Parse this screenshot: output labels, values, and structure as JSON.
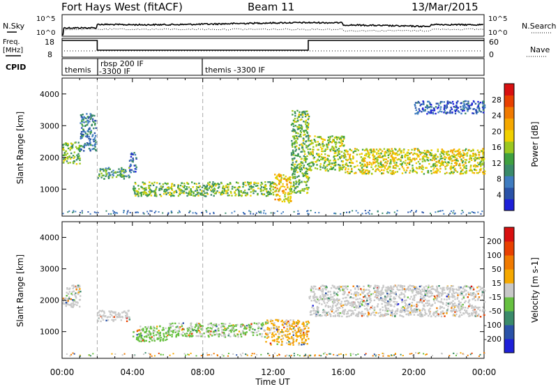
{
  "header": {
    "station": "Fort Hays West (fitACF)",
    "beam": "Beam 11",
    "date": "13/Mar/2015"
  },
  "status_panels": {
    "nsky_label": "N.Sky",
    "nsky_ticks": [
      "10^5",
      "10^0"
    ],
    "nsearch_label": "N.Search",
    "freq_label_line1": "Freq.",
    "freq_label_line2": "[MHz]",
    "freq_ticks": [
      "18",
      "8"
    ],
    "nave_label": "Nave",
    "nave_ticks": [
      "60",
      "0"
    ],
    "cpid_label": "CPID",
    "cpid_segments": [
      {
        "start": 0.0,
        "end": 2.0,
        "label": "themis",
        "label2": ""
      },
      {
        "start": 2.0,
        "end": 8.0,
        "label": "rbsp 200 IF",
        "label2": "-3300 IF"
      },
      {
        "start": 8.0,
        "end": 24.0,
        "label": "themis -3300 IF",
        "label2": ""
      }
    ],
    "freq_high_windows": [
      [
        0.0,
        2.0
      ],
      [
        14.0,
        24.0
      ]
    ]
  },
  "chart_data": [
    {
      "type": "heatmap",
      "title": "",
      "xlabel": "Time UT",
      "ylabel": "Slant Range [km]",
      "xlim": [
        0,
        24
      ],
      "ylim": [
        150,
        4500
      ],
      "x_ticks": [
        "00:00",
        "04:00",
        "08:00",
        "12:00",
        "16:00",
        "20:00",
        "00:00"
      ],
      "y_ticks": [
        1000,
        2000,
        3000,
        4000
      ],
      "colorbar": {
        "label": "Power [dB]",
        "range": [
          0,
          32
        ],
        "ticks": [
          4,
          8,
          12,
          16,
          20,
          24,
          28
        ],
        "colors": [
          "#1e20d8",
          "#2a52a8",
          "#3f7cc0",
          "#3a8a6a",
          "#3fa040",
          "#9bc820",
          "#f0d000",
          "#f5a800",
          "#f07a00",
          "#e84000",
          "#d81010"
        ]
      },
      "scatter_regions": [
        {
          "t0": 0.0,
          "t1": 1.0,
          "r0": 1800,
          "r1": 2500,
          "power": 14
        },
        {
          "t0": 1.0,
          "t1": 1.9,
          "r0": 2200,
          "r1": 3400,
          "power": 8
        },
        {
          "t0": 2.0,
          "t1": 3.8,
          "r0": 1350,
          "r1": 1700,
          "power": 12
        },
        {
          "t0": 3.8,
          "t1": 4.2,
          "r0": 1550,
          "r1": 2200,
          "power": 6
        },
        {
          "t0": 4.0,
          "t1": 12.0,
          "r0": 800,
          "r1": 1250,
          "power": 14
        },
        {
          "t0": 12.0,
          "t1": 13.0,
          "r0": 600,
          "r1": 1500,
          "power": 20
        },
        {
          "t0": 13.0,
          "t1": 14.0,
          "r0": 900,
          "r1": 3500,
          "power": 14
        },
        {
          "t0": 14.0,
          "t1": 16.0,
          "r0": 1600,
          "r1": 2700,
          "power": 16
        },
        {
          "t0": 16.0,
          "t1": 24.0,
          "r0": 1500,
          "r1": 2300,
          "power": 18
        },
        {
          "t0": 20.0,
          "t1": 24.0,
          "r0": 3400,
          "r1": 3800,
          "power": 5
        }
      ],
      "dashed_lines_ut": [
        2.0,
        8.0
      ]
    },
    {
      "type": "heatmap",
      "title": "",
      "xlabel": "Time UT",
      "ylabel": "Slant Range [km]",
      "xlim": [
        0,
        24
      ],
      "ylim": [
        150,
        4500
      ],
      "x_ticks": [
        "00:00",
        "04:00",
        "08:00",
        "12:00",
        "16:00",
        "20:00",
        "00:00"
      ],
      "y_ticks": [
        1000,
        2000,
        3000,
        4000
      ],
      "colorbar": {
        "label": "Velocity [m s-1]",
        "range": [
          -250,
          250
        ],
        "ticks": [
          200,
          100,
          50,
          15,
          -15,
          -50,
          -100,
          -200
        ],
        "colors": [
          "#1e20d8",
          "#2a52a8",
          "#3a8a6a",
          "#66c040",
          "#c8c8c8",
          "#f5a800",
          "#f07a00",
          "#e84000",
          "#d81010"
        ]
      },
      "scatter_regions": [
        {
          "t0": 0.0,
          "t1": 1.0,
          "r0": 1800,
          "r1": 2500,
          "velocity": 0
        },
        {
          "t0": 2.0,
          "t1": 3.8,
          "r0": 1350,
          "r1": 1700,
          "velocity": 0
        },
        {
          "t0": 4.0,
          "t1": 6.0,
          "r0": 700,
          "r1": 1200,
          "velocity": -40
        },
        {
          "t0": 6.0,
          "t1": 11.5,
          "r0": 850,
          "r1": 1300,
          "velocity": -30
        },
        {
          "t0": 11.5,
          "t1": 14.0,
          "r0": 600,
          "r1": 1400,
          "velocity": 40
        },
        {
          "t0": 14.0,
          "t1": 24.0,
          "r0": 1500,
          "r1": 2500,
          "velocity": 0
        }
      ],
      "dashed_lines_ut": [
        2.0,
        8.0
      ]
    }
  ]
}
